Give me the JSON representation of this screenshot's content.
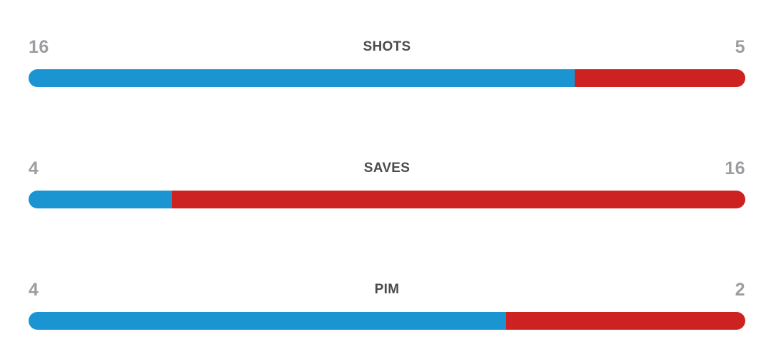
{
  "colors": {
    "home_bar": "#1b94d2",
    "away_bar": "#cd2222",
    "value_text": "#9b9da0",
    "label_text": "#4a4b4d",
    "background": "#ffffff"
  },
  "chart_data": {
    "type": "bar",
    "subtype": "head-to-head comparison",
    "orientation": "horizontal",
    "legend_position": "none",
    "grid": false,
    "series": [
      {
        "name": "home",
        "color": "#1b94d2",
        "values": [
          16,
          4,
          4
        ]
      },
      {
        "name": "away",
        "color": "#cd2222",
        "values": [
          5,
          16,
          2
        ]
      }
    ],
    "categories": [
      "SHOTS",
      "SAVES",
      "PIM"
    ],
    "rows": [
      {
        "label": "SHOTS",
        "home_value": 16,
        "away_value": 5,
        "home_width": "76.19%",
        "away_width": "23.81%"
      },
      {
        "label": "SAVES",
        "home_value": 4,
        "away_value": 16,
        "home_width": "20%",
        "away_width": "80%"
      },
      {
        "label": "PIM",
        "home_value": 4,
        "away_value": 2,
        "home_width": "66.67%",
        "away_width": "33.33%"
      }
    ]
  }
}
